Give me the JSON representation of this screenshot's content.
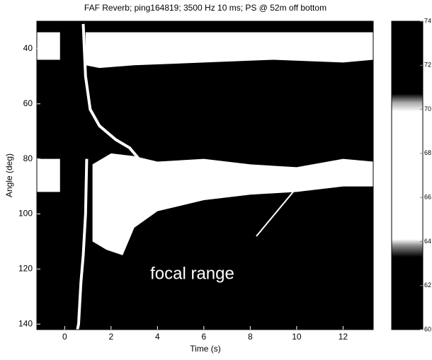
{
  "chart_data": {
    "type": "image",
    "title": "FAF Reverb; ping164819; 3500 Hz 10 ms; PS @ 52m off bottom",
    "x_label": "Time (s)",
    "y_label": "Angle (deg)",
    "xlim": [
      -1.2,
      13.3
    ],
    "xticks": [
      0,
      2,
      4,
      6,
      8,
      10,
      12
    ],
    "ylim": [
      30,
      142
    ],
    "y_inverted": true,
    "yticks": [
      40,
      60,
      80,
      100,
      120,
      140
    ],
    "background": "#000000",
    "region_color": "#ffffff",
    "regions": [
      {
        "x": [
          -1.2,
          -0.2,
          -0.2,
          -1.2
        ],
        "y": [
          34,
          34,
          44,
          44
        ]
      },
      {
        "x": [
          0.9,
          13.3,
          13.3,
          12,
          9,
          6,
          3,
          1.5,
          0.9
        ],
        "y": [
          34,
          34,
          44,
          45,
          44,
          45,
          46,
          47,
          46
        ]
      },
      {
        "x": [
          -1.2,
          -0.2,
          -0.2,
          -1.2
        ],
        "y": [
          80,
          80,
          92,
          92
        ]
      },
      {
        "x": [
          1.2,
          2,
          3,
          4,
          6,
          8,
          10,
          12,
          13.3,
          13.3,
          12,
          10,
          8,
          6,
          4,
          3,
          2.5,
          1.8,
          1.2
        ],
        "y": [
          82,
          78,
          79,
          81,
          80,
          82,
          83,
          80,
          81,
          90,
          90,
          92,
          93,
          95,
          99,
          105,
          115,
          113,
          110
        ]
      }
    ],
    "traces": [
      {
        "x": [
          0.8,
          0.9,
          1.1,
          1.5,
          2.2,
          2.8,
          3.2
        ],
        "y": [
          31,
          50,
          62,
          68,
          73,
          76,
          80
        ]
      },
      {
        "x": [
          0.95,
          0.9,
          0.8,
          0.7,
          0.6,
          0.55
        ],
        "y": [
          80,
          100,
          115,
          125,
          140,
          142
        ]
      }
    ],
    "annotation": "focal range",
    "annotation_at": [
      5.5,
      122
    ],
    "colorbar": {
      "clim": [
        60,
        74
      ],
      "ticks": [
        60,
        62,
        64,
        66,
        68,
        70,
        72,
        74
      ],
      "stops": [
        {
          "value": 60,
          "color": "#000000"
        },
        {
          "value": 63.3,
          "color": "#000000"
        },
        {
          "value": 63.8,
          "color": "#888888"
        },
        {
          "value": 64.1,
          "color": "#ffffff"
        },
        {
          "value": 69.9,
          "color": "#ffffff"
        },
        {
          "value": 70.3,
          "color": "#aaaaaa"
        },
        {
          "value": 70.7,
          "color": "#000000"
        },
        {
          "value": 74,
          "color": "#000000"
        }
      ]
    }
  }
}
